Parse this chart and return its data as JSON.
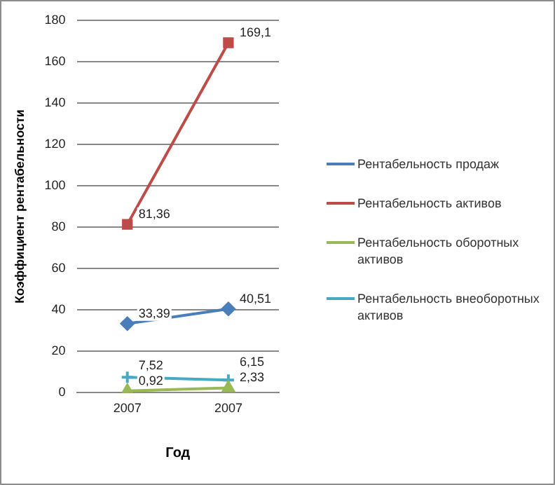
{
  "chart_data": {
    "type": "line",
    "xlabel": "Год",
    "ylabel": "Коэффициент рентабельности",
    "categories": [
      "2007",
      "2007"
    ],
    "series": [
      {
        "name": "Рентабельность продаж",
        "color": "#4a7ebb",
        "values": [
          33.39,
          40.51
        ],
        "value_labels": [
          "33,39",
          "40,51"
        ],
        "marker": "diamond"
      },
      {
        "name": "Рентабельность активов",
        "color": "#be4b48",
        "values": [
          81.36,
          169.1
        ],
        "value_labels": [
          "81,36",
          "169,1"
        ],
        "marker": "square"
      },
      {
        "name": "Рентабельность оборотных активов",
        "color": "#98b954",
        "values": [
          0.92,
          2.33
        ],
        "value_labels": [
          "0,92",
          "2,33"
        ],
        "marker": "triangle"
      },
      {
        "name": "Рентабельность внеоборотных активов",
        "color": "#46aac5",
        "values": [
          7.52,
          6.15
        ],
        "value_labels": [
          "7,52",
          "6,15"
        ],
        "marker": "cross"
      }
    ],
    "ylim": [
      0,
      180
    ],
    "yticks": [
      0,
      20,
      40,
      60,
      80,
      100,
      120,
      140,
      160,
      180
    ],
    "grid": "y",
    "legend": "right"
  }
}
